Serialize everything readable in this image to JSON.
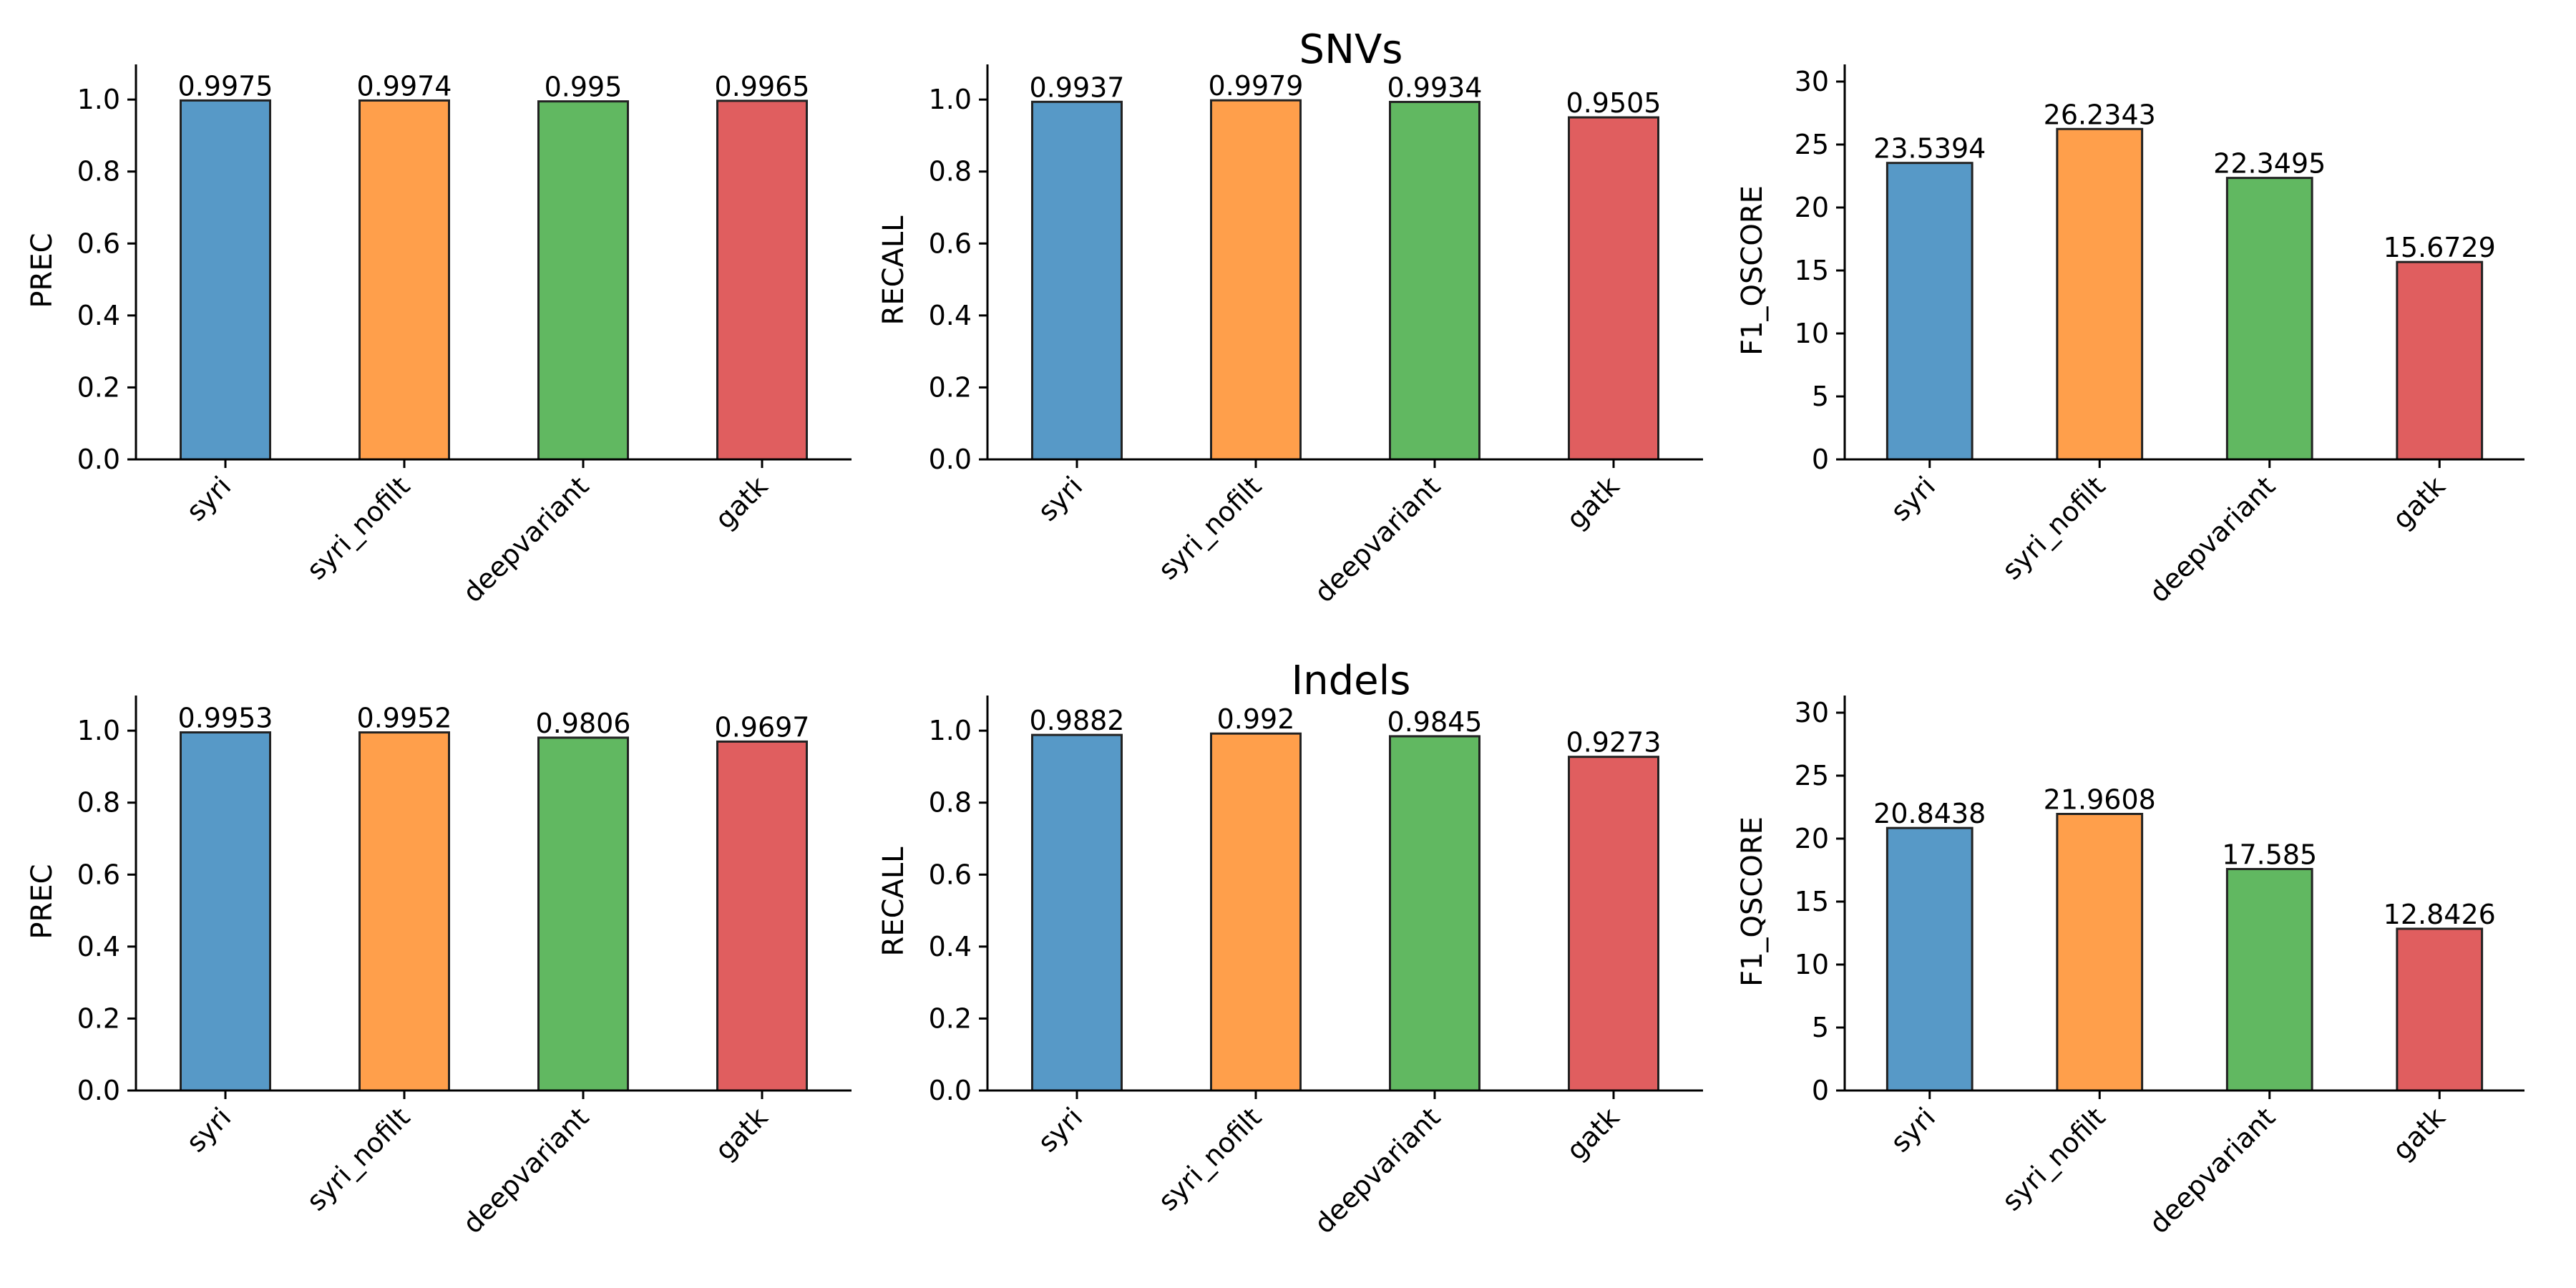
{
  "row_titles": [
    "SNVs",
    "Indels"
  ],
  "colors": [
    "#5799c7",
    "#ff9f4b",
    "#61b861",
    "#e05e5f"
  ],
  "chart_data": [
    {
      "type": "bar",
      "row": 0,
      "col": 0,
      "title": "",
      "xlabel": "",
      "ylabel": "PREC",
      "categories": [
        "syri",
        "syri_nofilt",
        "deepvariant",
        "gatk"
      ],
      "values": [
        0.9975,
        0.9974,
        0.995,
        0.9965
      ],
      "labels": [
        "0.9975",
        "0.9974",
        "0.995",
        "0.9965"
      ],
      "ylim": [
        0,
        1.05
      ],
      "yticks": [
        0,
        0.2,
        0.4,
        0.6,
        0.8,
        1.0
      ],
      "yticklabels": [
        "0.0",
        "0.2",
        "0.4",
        "0.6",
        "0.8",
        "1.0"
      ],
      "grid": false
    },
    {
      "type": "bar",
      "row": 0,
      "col": 1,
      "title": "",
      "xlabel": "",
      "ylabel": "RECALL",
      "categories": [
        "syri",
        "syri_nofilt",
        "deepvariant",
        "gatk"
      ],
      "values": [
        0.9937,
        0.9979,
        0.9934,
        0.9505
      ],
      "labels": [
        "0.9937",
        "0.9979",
        "0.9934",
        "0.9505"
      ],
      "ylim": [
        0,
        1.05
      ],
      "yticks": [
        0,
        0.2,
        0.4,
        0.6,
        0.8,
        1.0
      ],
      "yticklabels": [
        "0.0",
        "0.2",
        "0.4",
        "0.6",
        "0.8",
        "1.0"
      ],
      "grid": false
    },
    {
      "type": "bar",
      "row": 0,
      "col": 2,
      "title": "",
      "xlabel": "",
      "ylabel": "F1_QSCORE",
      "categories": [
        "syri",
        "syri_nofilt",
        "deepvariant",
        "gatk"
      ],
      "values": [
        23.5394,
        26.2343,
        22.3495,
        15.6729
      ],
      "labels": [
        "23.5394",
        "26.2343",
        "22.3495",
        "15.6729"
      ],
      "ylim": [
        0,
        30
      ],
      "yticks": [
        0,
        5,
        10,
        15,
        20,
        25,
        30
      ],
      "yticklabels": [
        "0",
        "5",
        "10",
        "15",
        "20",
        "25",
        "30"
      ],
      "grid": false
    },
    {
      "type": "bar",
      "row": 1,
      "col": 0,
      "title": "",
      "xlabel": "",
      "ylabel": "PREC",
      "categories": [
        "syri",
        "syri_nofilt",
        "deepvariant",
        "gatk"
      ],
      "values": [
        0.9953,
        0.9952,
        0.9806,
        0.9697
      ],
      "labels": [
        "0.9953",
        "0.9952",
        "0.9806",
        "0.9697"
      ],
      "ylim": [
        0,
        1.05
      ],
      "yticks": [
        0,
        0.2,
        0.4,
        0.6,
        0.8,
        1.0
      ],
      "yticklabels": [
        "0.0",
        "0.2",
        "0.4",
        "0.6",
        "0.8",
        "1.0"
      ],
      "grid": false
    },
    {
      "type": "bar",
      "row": 1,
      "col": 1,
      "title": "",
      "xlabel": "",
      "ylabel": "RECALL",
      "categories": [
        "syri",
        "syri_nofilt",
        "deepvariant",
        "gatk"
      ],
      "values": [
        0.9882,
        0.992,
        0.9845,
        0.9273
      ],
      "labels": [
        "0.9882",
        "0.992",
        "0.9845",
        "0.9273"
      ],
      "ylim": [
        0,
        1.05
      ],
      "yticks": [
        0,
        0.2,
        0.4,
        0.6,
        0.8,
        1.0
      ],
      "yticklabels": [
        "0.0",
        "0.2",
        "0.4",
        "0.6",
        "0.8",
        "1.0"
      ],
      "grid": false
    },
    {
      "type": "bar",
      "row": 1,
      "col": 2,
      "title": "",
      "xlabel": "",
      "ylabel": "F1_QSCORE",
      "categories": [
        "syri",
        "syri_nofilt",
        "deepvariant",
        "gatk"
      ],
      "values": [
        20.8438,
        21.9608,
        17.585,
        12.8426
      ],
      "labels": [
        "20.8438",
        "21.9608",
        "17.585",
        "12.8426"
      ],
      "ylim": [
        0,
        30
      ],
      "yticks": [
        0,
        5,
        10,
        15,
        20,
        25,
        30
      ],
      "yticklabels": [
        "0",
        "5",
        "10",
        "15",
        "20",
        "25",
        "30"
      ],
      "grid": false
    }
  ]
}
